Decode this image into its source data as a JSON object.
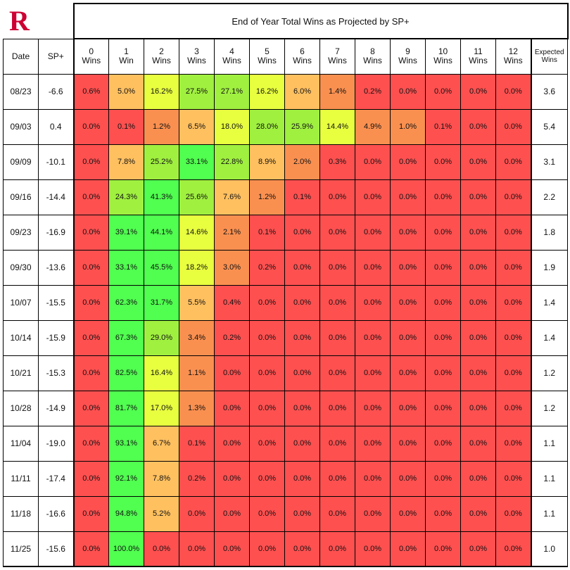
{
  "title": "End of Year Total Wins as Projected by SP+",
  "logo_letter": "R",
  "logo_color": "#cc0033",
  "headers": {
    "date": "Date",
    "sp": "SP+",
    "wins": [
      [
        "0",
        "Wins"
      ],
      [
        "1",
        "Win"
      ],
      [
        "2",
        "Wins"
      ],
      [
        "3",
        "Wins"
      ],
      [
        "4",
        "Wins"
      ],
      [
        "5",
        "Wins"
      ],
      [
        "6",
        "Wins"
      ],
      [
        "7",
        "Wins"
      ],
      [
        "8",
        "Wins"
      ],
      [
        "9",
        "Wins"
      ],
      [
        "10",
        "Wins"
      ],
      [
        "11",
        "Wins"
      ],
      [
        "12",
        "Wins"
      ]
    ],
    "expected": [
      "Expected",
      "Wins"
    ]
  },
  "chart_data": {
    "type": "heatmap",
    "title": "End of Year Total Wins as Projected by SP+",
    "columns": [
      "0 Wins",
      "1 Win",
      "2 Wins",
      "3 Wins",
      "4 Wins",
      "5 Wins",
      "6 Wins",
      "7 Wins",
      "8 Wins",
      "9 Wins",
      "10 Wins",
      "11 Wins",
      "12 Wins"
    ],
    "rows": [
      {
        "date": "08/23",
        "sp": "-6.6",
        "probs": [
          "0.6%",
          "5.0%",
          "16.2%",
          "27.5%",
          "27.1%",
          "16.2%",
          "6.0%",
          "1.4%",
          "0.2%",
          "0.0%",
          "0.0%",
          "0.0%",
          "0.0%"
        ],
        "expected": "3.6"
      },
      {
        "date": "09/03",
        "sp": "0.4",
        "probs": [
          "0.0%",
          "0.1%",
          "1.2%",
          "6.5%",
          "18.0%",
          "28.0%",
          "25.9%",
          "14.4%",
          "4.9%",
          "1.0%",
          "0.1%",
          "0.0%",
          "0.0%"
        ],
        "expected": "5.4"
      },
      {
        "date": "09/09",
        "sp": "-10.1",
        "probs": [
          "0.0%",
          "7.8%",
          "25.2%",
          "33.1%",
          "22.8%",
          "8.9%",
          "2.0%",
          "0.3%",
          "0.0%",
          "0.0%",
          "0.0%",
          "0.0%",
          "0.0%"
        ],
        "expected": "3.1"
      },
      {
        "date": "09/16",
        "sp": "-14.4",
        "probs": [
          "0.0%",
          "24.3%",
          "41.3%",
          "25.6%",
          "7.6%",
          "1.2%",
          "0.1%",
          "0.0%",
          "0.0%",
          "0.0%",
          "0.0%",
          "0.0%",
          "0.0%"
        ],
        "expected": "2.2"
      },
      {
        "date": "09/23",
        "sp": "-16.9",
        "probs": [
          "0.0%",
          "39.1%",
          "44.1%",
          "14.6%",
          "2.1%",
          "0.1%",
          "0.0%",
          "0.0%",
          "0.0%",
          "0.0%",
          "0.0%",
          "0.0%",
          "0.0%"
        ],
        "expected": "1.8"
      },
      {
        "date": "09/30",
        "sp": "-13.6",
        "probs": [
          "0.0%",
          "33.1%",
          "45.5%",
          "18.2%",
          "3.0%",
          "0.2%",
          "0.0%",
          "0.0%",
          "0.0%",
          "0.0%",
          "0.0%",
          "0.0%",
          "0.0%"
        ],
        "expected": "1.9"
      },
      {
        "date": "10/07",
        "sp": "-15.5",
        "probs": [
          "0.0%",
          "62.3%",
          "31.7%",
          "5.5%",
          "0.4%",
          "0.0%",
          "0.0%",
          "0.0%",
          "0.0%",
          "0.0%",
          "0.0%",
          "0.0%",
          "0.0%"
        ],
        "expected": "1.4"
      },
      {
        "date": "10/14",
        "sp": "-15.9",
        "probs": [
          "0.0%",
          "67.3%",
          "29.0%",
          "3.4%",
          "0.2%",
          "0.0%",
          "0.0%",
          "0.0%",
          "0.0%",
          "0.0%",
          "0.0%",
          "0.0%",
          "0.0%"
        ],
        "expected": "1.4"
      },
      {
        "date": "10/21",
        "sp": "-15.3",
        "probs": [
          "0.0%",
          "82.5%",
          "16.4%",
          "1.1%",
          "0.0%",
          "0.0%",
          "0.0%",
          "0.0%",
          "0.0%",
          "0.0%",
          "0.0%",
          "0.0%",
          "0.0%"
        ],
        "expected": "1.2"
      },
      {
        "date": "10/28",
        "sp": "-14.9",
        "probs": [
          "0.0%",
          "81.7%",
          "17.0%",
          "1.3%",
          "0.0%",
          "0.0%",
          "0.0%",
          "0.0%",
          "0.0%",
          "0.0%",
          "0.0%",
          "0.0%",
          "0.0%"
        ],
        "expected": "1.2"
      },
      {
        "date": "11/04",
        "sp": "-19.0",
        "probs": [
          "0.0%",
          "93.1%",
          "6.7%",
          "0.1%",
          "0.0%",
          "0.0%",
          "0.0%",
          "0.0%",
          "0.0%",
          "0.0%",
          "0.0%",
          "0.0%",
          "0.0%"
        ],
        "expected": "1.1"
      },
      {
        "date": "11/11",
        "sp": "-17.4",
        "probs": [
          "0.0%",
          "92.1%",
          "7.8%",
          "0.2%",
          "0.0%",
          "0.0%",
          "0.0%",
          "0.0%",
          "0.0%",
          "0.0%",
          "0.0%",
          "0.0%",
          "0.0%"
        ],
        "expected": "1.1"
      },
      {
        "date": "11/18",
        "sp": "-16.6",
        "probs": [
          "0.0%",
          "94.8%",
          "5.2%",
          "0.0%",
          "0.0%",
          "0.0%",
          "0.0%",
          "0.0%",
          "0.0%",
          "0.0%",
          "0.0%",
          "0.0%",
          "0.0%"
        ],
        "expected": "1.1"
      },
      {
        "date": "11/25",
        "sp": "-15.6",
        "probs": [
          "0.0%",
          "100.0%",
          "0.0%",
          "0.0%",
          "0.0%",
          "0.0%",
          "0.0%",
          "0.0%",
          "0.0%",
          "0.0%",
          "0.0%",
          "0.0%",
          "0.0%"
        ],
        "expected": "1.0"
      }
    ],
    "colors": {
      "red": "#ff5050",
      "orange": "#fa9050",
      "yellow": "#ffff3c",
      "green": "#50ff50"
    }
  }
}
